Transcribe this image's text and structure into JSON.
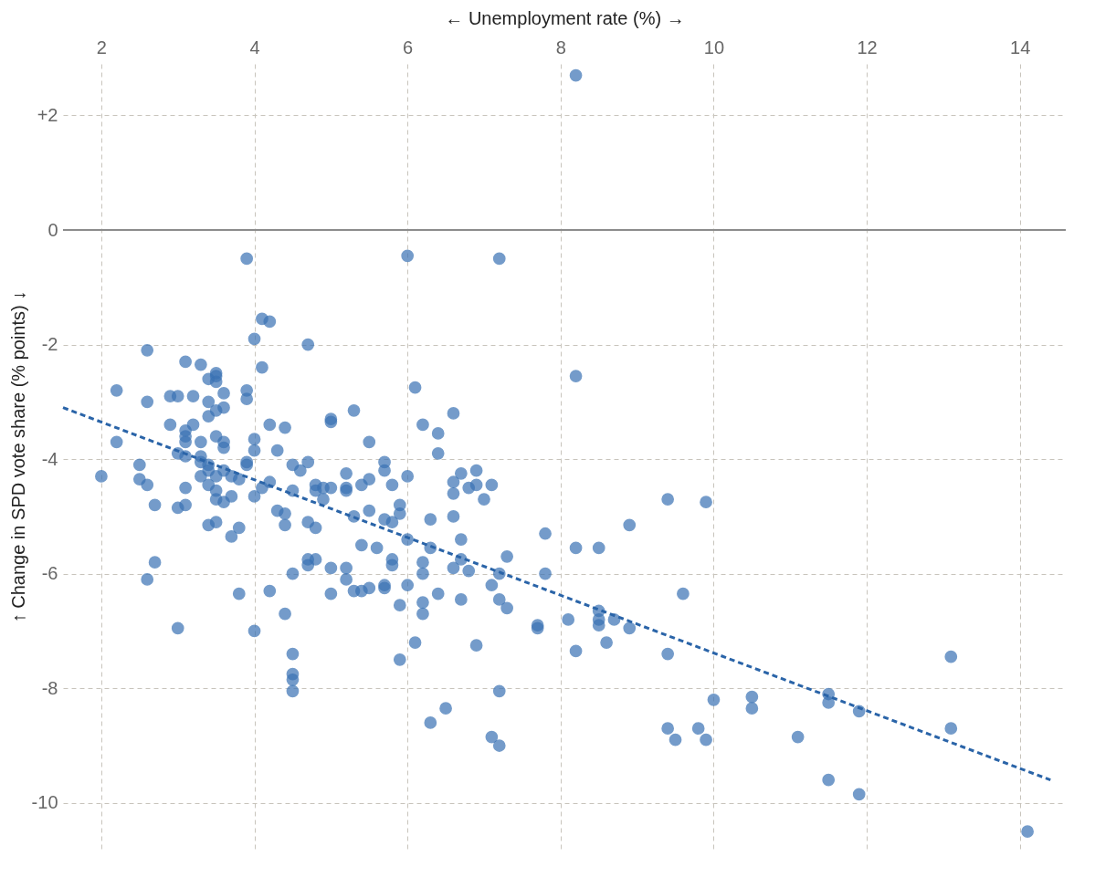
{
  "chart_data": {
    "type": "scatter",
    "xlabel": "← Unemployment rate (%) →",
    "ylabel": "↑ Change in SPD vote share (% points) ↓",
    "xlim": [
      1.5,
      14.6
    ],
    "ylim": [
      -10.8,
      2.9
    ],
    "xticks": [
      2,
      4,
      6,
      8,
      10,
      12,
      14
    ],
    "yticks": [
      {
        "value": 2,
        "label": "+2"
      },
      0,
      -2,
      -4,
      -6,
      -8,
      -10
    ],
    "grid": true,
    "marker": "circle",
    "ref_lines": [
      {
        "axis": "y",
        "value": 0,
        "color": "#8c8c8c",
        "line_style": "solid"
      }
    ],
    "series": [
      {
        "color": "#3a72b4",
        "x": [
          8.2,
          3.9,
          6.0,
          7.2,
          4.1,
          4.2,
          4.0,
          4.7,
          8.2,
          2.6,
          3.1,
          3.3,
          4.1,
          2.2,
          3.9,
          6.1,
          3.5,
          3.5,
          3.4,
          3.5,
          2.6,
          2.9,
          3.0,
          3.2,
          3.4,
          3.6,
          3.6,
          3.5,
          3.9,
          6.6,
          5.3,
          5.0,
          5.0,
          6.2,
          6.4,
          4.4,
          4.2,
          2.2,
          3.1,
          3.1,
          3.1,
          3.2,
          2.9,
          3.4,
          3.5,
          3.6,
          3.6,
          3.3,
          4.0,
          4.0,
          5.5,
          6.4,
          2.5,
          2.0,
          2.5,
          2.6,
          3.0,
          3.1,
          3.3,
          3.3,
          3.4,
          3.4,
          3.3,
          3.5,
          3.6,
          3.7,
          3.8,
          3.9,
          3.9,
          4.2,
          4.3,
          4.5,
          4.7,
          4.6,
          4.8,
          4.8,
          4.9,
          5.2,
          5.2,
          5.4,
          5.5,
          5.7,
          5.7,
          5.8,
          6.0,
          6.6,
          6.6,
          6.7,
          6.8,
          6.9,
          6.9,
          7.1,
          7.0,
          2.7,
          3.0,
          3.1,
          3.1,
          3.4,
          3.5,
          3.5,
          3.6,
          3.7,
          4.0,
          4.1,
          4.3,
          4.4,
          4.5,
          4.4,
          3.4,
          3.5,
          3.8,
          3.7,
          4.7,
          4.8,
          4.9,
          5.0,
          5.2,
          5.3,
          5.5,
          5.7,
          5.8,
          5.9,
          5.9,
          6.0,
          6.3,
          6.6,
          6.7,
          6.3,
          7.8,
          9.4,
          9.9,
          8.9,
          2.7,
          2.6,
          4.7,
          4.8,
          4.7,
          5.0,
          5.2,
          5.2,
          5.3,
          5.4,
          5.6,
          5.8,
          5.8,
          5.7,
          5.7,
          5.5,
          5.4,
          6.2,
          6.2,
          6.6,
          6.7,
          6.8,
          7.3,
          7.2,
          7.8,
          8.2,
          8.5,
          6.4,
          6.7,
          7.1,
          7.2,
          7.3,
          6.2,
          6.2,
          6.0,
          5.0,
          4.2,
          3.8,
          3.0,
          4.0,
          4.4,
          4.5,
          5.9,
          6.1,
          5.9,
          4.5,
          4.5,
          4.5,
          4.5,
          6.3,
          6.5,
          7.2,
          7.1,
          7.2,
          6.9,
          7.7,
          7.7,
          8.1,
          8.2,
          8.5,
          8.5,
          8.5,
          8.6,
          8.7,
          8.9,
          9.4,
          9.6,
          9.4,
          9.5,
          9.8,
          9.9,
          10.0,
          10.5,
          10.5,
          11.1,
          11.5,
          11.5,
          11.5,
          11.9,
          11.9,
          13.1,
          13.1,
          14.1
        ],
        "values": [
          2.7,
          -0.5,
          -0.45,
          -0.5,
          -1.55,
          -1.6,
          -1.9,
          -2.0,
          -2.55,
          -2.1,
          -2.3,
          -2.35,
          -2.4,
          -2.8,
          -2.8,
          -2.75,
          -2.5,
          -2.55,
          -2.6,
          -2.65,
          -3.0,
          -2.9,
          -2.9,
          -2.9,
          -3.0,
          -2.85,
          -3.1,
          -3.15,
          -2.95,
          -3.2,
          -3.15,
          -3.3,
          -3.35,
          -3.4,
          -3.55,
          -3.45,
          -3.4,
          -3.7,
          -3.5,
          -3.6,
          -3.7,
          -3.4,
          -3.4,
          -3.25,
          -3.6,
          -3.7,
          -3.8,
          -3.7,
          -3.65,
          -3.85,
          -3.7,
          -3.9,
          -4.1,
          -4.3,
          -4.35,
          -4.45,
          -3.9,
          -3.95,
          -3.95,
          -4.05,
          -4.1,
          -4.2,
          -4.3,
          -4.3,
          -4.2,
          -4.3,
          -4.35,
          -4.1,
          -4.05,
          -4.4,
          -3.85,
          -4.1,
          -4.05,
          -4.2,
          -4.45,
          -4.55,
          -4.5,
          -4.25,
          -4.5,
          -4.45,
          -4.35,
          -4.05,
          -4.2,
          -4.45,
          -4.3,
          -4.4,
          -4.6,
          -4.25,
          -4.5,
          -4.2,
          -4.45,
          -4.45,
          -4.7,
          -4.8,
          -4.85,
          -4.5,
          -4.8,
          -4.45,
          -4.55,
          -4.7,
          -4.75,
          -4.65,
          -4.65,
          -4.5,
          -4.9,
          -4.95,
          -4.55,
          -5.15,
          -5.15,
          -5.1,
          -5.2,
          -5.35,
          -5.1,
          -5.2,
          -4.7,
          -4.5,
          -4.55,
          -5.0,
          -4.9,
          -5.05,
          -5.1,
          -4.95,
          -4.8,
          -5.4,
          -5.05,
          -5.0,
          -5.4,
          -5.55,
          -5.3,
          -4.7,
          -4.75,
          -5.15,
          -5.8,
          -6.1,
          -5.75,
          -5.75,
          -5.85,
          -5.9,
          -5.9,
          -6.1,
          -6.3,
          -5.5,
          -5.55,
          -5.75,
          -5.85,
          -6.2,
          -6.25,
          -6.25,
          -6.3,
          -5.8,
          -6.0,
          -5.9,
          -5.75,
          -5.95,
          -5.7,
          -6.0,
          -6.0,
          -5.55,
          -5.55,
          -6.35,
          -6.45,
          -6.2,
          -6.45,
          -6.6,
          -6.5,
          -6.7,
          -6.2,
          -6.35,
          -6.3,
          -6.35,
          -6.95,
          -7.0,
          -6.7,
          -6.0,
          -6.55,
          -7.2,
          -7.5,
          -7.4,
          -7.75,
          -7.85,
          -8.05,
          -8.6,
          -8.35,
          -8.05,
          -8.85,
          -9.0,
          -7.25,
          -6.95,
          -6.9,
          -6.8,
          -7.35,
          -6.65,
          -6.8,
          -6.9,
          -7.2,
          -6.8,
          -6.95,
          -7.4,
          -6.35,
          -8.7,
          -8.9,
          -8.7,
          -8.9,
          -8.2,
          -8.15,
          -8.35,
          -8.85,
          -8.1,
          -8.25,
          -9.6,
          -8.4,
          -9.85,
          -7.45,
          -8.7,
          -10.5
        ]
      },
      {
        "type": "line",
        "color": "#2a64a8",
        "line_style": "dashed",
        "marker": "none",
        "x": [
          1.5,
          14.4
        ],
        "values": [
          -3.1,
          -9.6
        ]
      }
    ]
  }
}
